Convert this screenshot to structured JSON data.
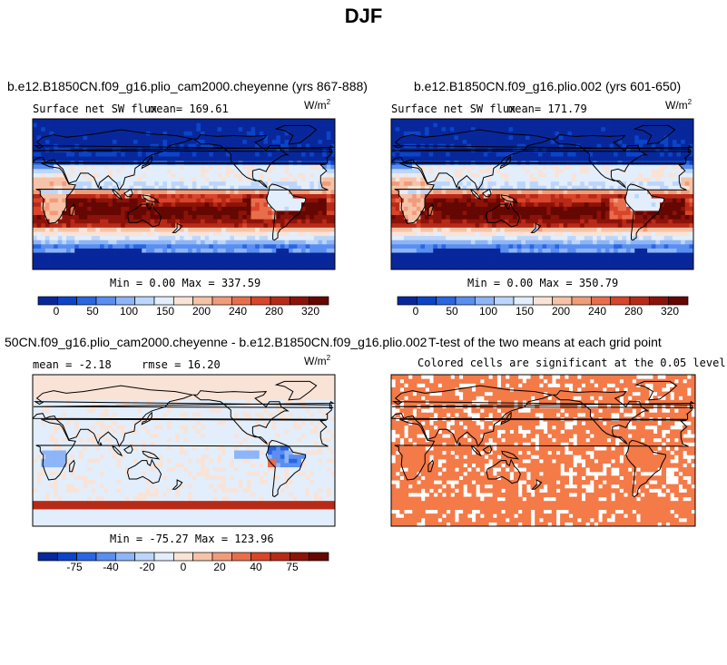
{
  "figure_title": "DJF",
  "colors": {
    "coast": "#000000",
    "sig": "#F47A48",
    "sw_scale": [
      "#08279B",
      "#0B44C9",
      "#2A66E2",
      "#5A8EF0",
      "#8DB5F7",
      "#BCD6FB",
      "#E2EEFB",
      "#F9E3D7",
      "#F6C3A8",
      "#F09C7B",
      "#E86E4B",
      "#D9452A",
      "#B82A18",
      "#8C1309",
      "#650702"
    ],
    "diff_scale": [
      "#08279B",
      "#0B44C9",
      "#2A66E2",
      "#5A8EF0",
      "#8DB5F7",
      "#BCD6FB",
      "#E2EEFB",
      "#F9E3D7",
      "#F6C3A8",
      "#F09C7B",
      "#E86E4B",
      "#D9452A",
      "#B82A18",
      "#8C1309",
      "#650702"
    ]
  },
  "chart_data": [
    {
      "type": "heatmap",
      "title": "b.e12.B1850CN.f09_g16.plio_cam2000.cheyenne (yrs 867-888)",
      "field_label": "Surface net SW flux",
      "mean_text": "mean= 169.61",
      "units_base": "W/m",
      "units_exp": "2",
      "min_text": "Min =    0.00 Max = 337.59",
      "min": 0.0,
      "max": 337.59,
      "mean": 169.61,
      "colorbar_ticks": [
        "0",
        "50",
        "100",
        "150",
        "200",
        "240",
        "280",
        "320"
      ],
      "colorbar_levels": [
        0,
        25,
        50,
        75,
        100,
        125,
        150,
        175,
        200,
        220,
        240,
        260,
        280,
        300,
        320
      ]
    },
    {
      "type": "heatmap",
      "title": "b.e12.B1850CN.f09_g16.plio.002 (yrs 601-650)",
      "field_label": "Surface net SW flux",
      "mean_text": "mean= 171.79",
      "units_base": "W/m",
      "units_exp": "2",
      "min_text": "Min =    0.00 Max = 350.79",
      "min": 0.0,
      "max": 350.79,
      "mean": 171.79,
      "colorbar_ticks": [
        "0",
        "50",
        "100",
        "150",
        "200",
        "240",
        "280",
        "320"
      ],
      "colorbar_levels": [
        0,
        25,
        50,
        75,
        100,
        125,
        150,
        175,
        200,
        220,
        240,
        260,
        280,
        300,
        320
      ]
    },
    {
      "type": "heatmap",
      "title": "50CN.f09_g16.plio_cam2000.cheyenne - b.e12.B1850CN.f09_g16.plio.002",
      "mean_text": "mean =  -2.18",
      "rmse_text": "rmse =  16.20",
      "units_base": "W/m",
      "units_exp": "2",
      "min_text": "Min = -75.27 Max = 123.96",
      "min": -75.27,
      "max": 123.96,
      "mean": -2.18,
      "rmse": 16.2,
      "colorbar_ticks": [
        "-75",
        "-40",
        "-20",
        "0",
        "20",
        "40",
        "75"
      ]
    },
    {
      "type": "heatmap",
      "title": "T-test of the two means at each grid point",
      "subtitle": "Colored cells are significant at the 0.05 level"
    }
  ]
}
